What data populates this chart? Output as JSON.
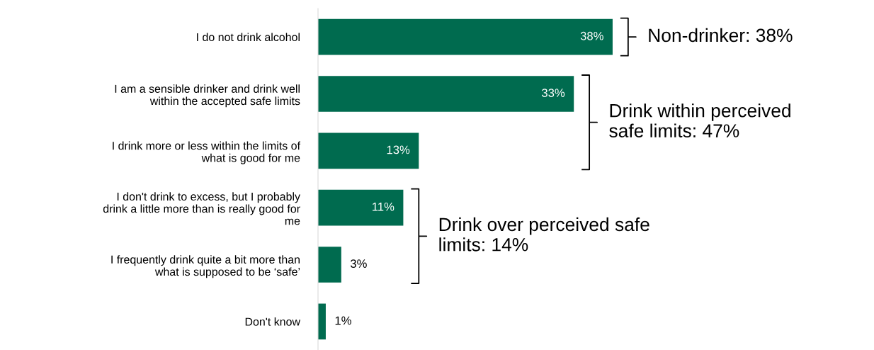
{
  "chart_data": {
    "type": "bar",
    "orientation": "horizontal",
    "categories": [
      "I do not drink alcohol",
      "I am a sensible drinker and drink well\nwithin the accepted safe limits",
      "I drink more or less within the limits of\nwhat is good for me",
      "I don't drink to excess, but I probably\ndrink a little more than is really good for\nme",
      "I frequently drink quite a bit more than\nwhat is supposed to be ‘safe’",
      "Don't know"
    ],
    "values": [
      38,
      33,
      13,
      11,
      3,
      1
    ],
    "value_labels": [
      "38%",
      "33%",
      "13%",
      "11%",
      "3%",
      "1%"
    ],
    "color": "#006b4f",
    "annotations": [
      "Non-drinker: 38%",
      "Drink within perceived\nsafe limits: 47%",
      "Drink over perceived safe\nlimits: 14%"
    ]
  }
}
